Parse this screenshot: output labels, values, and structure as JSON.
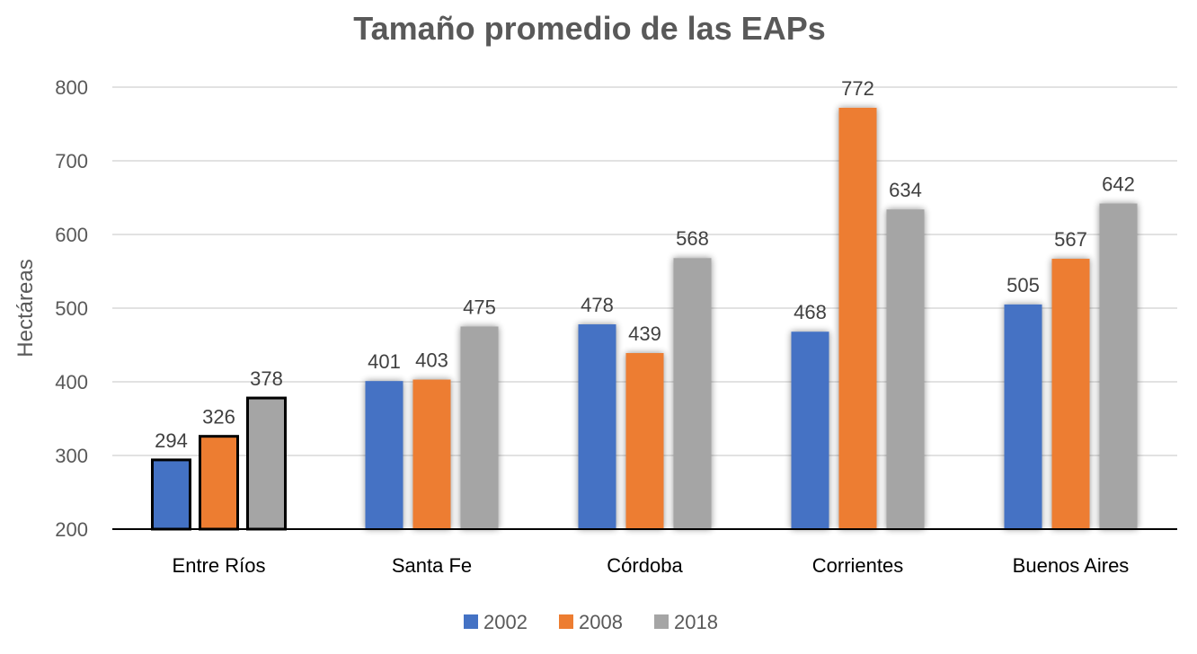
{
  "chart_data": {
    "type": "bar",
    "title": "Tamaño promedio de las EAPs",
    "xlabel": "",
    "ylabel": "Hectáreas",
    "ylim": [
      200,
      800
    ],
    "yticks": [
      "200",
      "300",
      "400",
      "500",
      "600",
      "700",
      "800"
    ],
    "grid": true,
    "legend_position": "bottom",
    "categories": [
      "Entre Ríos",
      "Santa Fe",
      "Córdoba",
      "Corrientes",
      "Buenos Aires"
    ],
    "highlighted_category": "Entre Ríos",
    "series": [
      {
        "name": "2002",
        "color": "#4472C4",
        "values": [
          294,
          401,
          478,
          468,
          505
        ]
      },
      {
        "name": "2008",
        "color": "#ED7D31",
        "values": [
          326,
          403,
          439,
          772,
          567
        ]
      },
      {
        "name": "2018",
        "color": "#A5A5A5",
        "values": [
          378,
          475,
          568,
          634,
          642
        ]
      }
    ]
  }
}
